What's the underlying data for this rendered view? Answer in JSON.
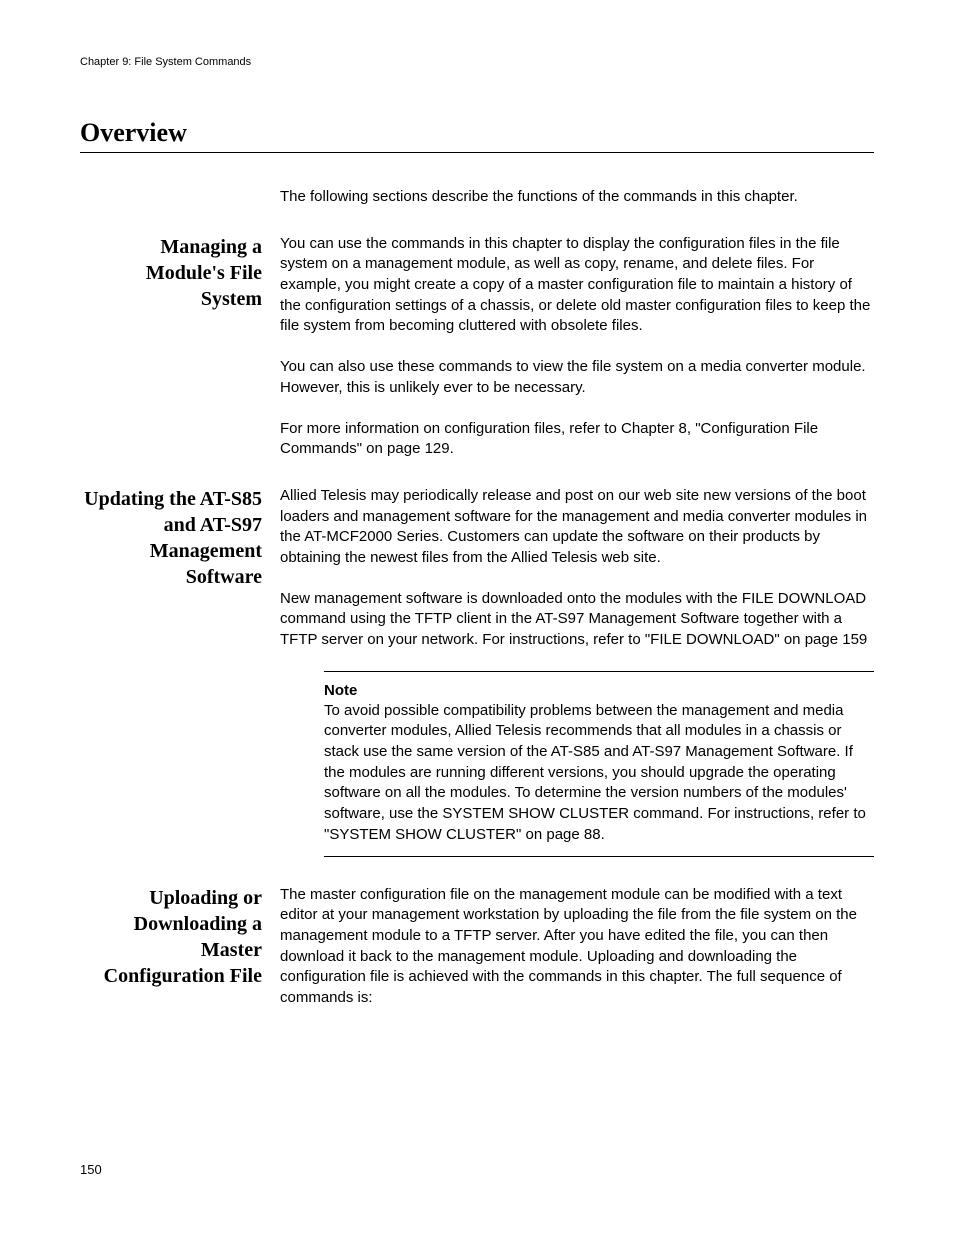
{
  "header": {
    "chapter": "Chapter 9: File System Commands"
  },
  "title": "Overview",
  "intro": "The following sections describe the functions of the commands in this chapter.",
  "sections": [
    {
      "heading": "Managing a Module's File System",
      "paragraphs": [
        "You can use the commands in this chapter to display the configuration files in the file system on a management module, as well as copy, rename, and delete files. For example, you might create a copy of a master configuration file to maintain a history of the configuration settings of a chassis, or delete old master configuration files to keep the file system from becoming cluttered with obsolete files.",
        "You can also use these commands to view the file system on a media converter module. However, this is unlikely ever to be necessary.",
        "For more information on configuration files, refer to Chapter 8, \"Configuration File Commands\" on page 129."
      ]
    },
    {
      "heading": "Updating the AT-S85 and AT-S97 Management Software",
      "paragraphs": [
        "Allied Telesis may periodically release and post on our web site new versions of the boot loaders and management software for the management and media converter modules in the AT-MCF2000 Series. Customers can update the software on their products by obtaining the newest files from the Allied Telesis web site.",
        "New management software is downloaded onto the modules with the FILE DOWNLOAD command using the TFTP client in the AT-S97 Management Software together with a TFTP server on your network. For instructions, refer to \"FILE DOWNLOAD\" on page 159"
      ],
      "note": {
        "label": "Note",
        "body": "To avoid possible compatibility problems between the management and media converter modules, Allied Telesis recommends that all modules in a chassis or stack use the same version of the AT-S85 and AT-S97 Management Software. If the modules are running different versions, you should upgrade the operating software on all the modules. To determine the version numbers of the modules' software, use the SYSTEM SHOW CLUSTER command. For instructions, refer to \"SYSTEM SHOW CLUSTER\" on page 88."
      }
    },
    {
      "heading": "Uploading or Downloading a Master Configuration File",
      "paragraphs": [
        "The master configuration file on the management module can be modified with a text editor at your management workstation by uploading the file from the file system on the management module to a TFTP server. After you have edited the file, you can then download it back to the management module. Uploading and downloading the configuration file is achieved with the commands in this chapter. The full sequence of commands is:"
      ]
    }
  ],
  "page_number": "150"
}
